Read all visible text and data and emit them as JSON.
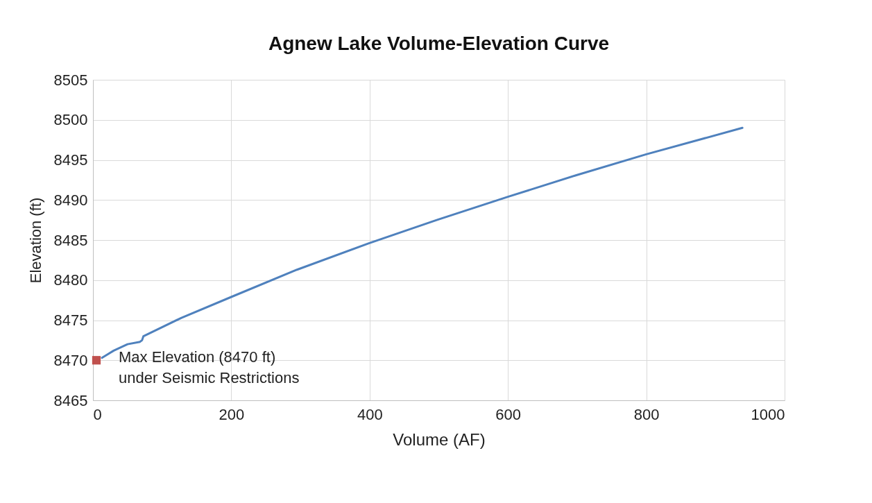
{
  "chart_data": {
    "type": "line",
    "title": "Agnew Lake Volume-Elevation Curve",
    "xlabel": "Volume (AF)",
    "ylabel": "Elevation (ft)",
    "xlim": [
      0,
      1000
    ],
    "xticks": [
      0,
      200,
      400,
      600,
      800,
      1000
    ],
    "ylim": [
      8465,
      8505
    ],
    "yticks": [
      8465,
      8470,
      8475,
      8480,
      8485,
      8490,
      8495,
      8500,
      8505
    ],
    "grid": true,
    "marker": "none",
    "series": [
      {
        "color": "#4f81bd",
        "x": [
          13,
          30,
          50,
          68,
          71,
          73,
          128,
          200,
          295,
          399,
          497,
          600,
          699,
          800,
          939
        ],
        "values": [
          8470.3,
          8471.2,
          8472.0,
          8472.3,
          8472.5,
          8473.0,
          8475.3,
          8477.9,
          8481.3,
          8484.6,
          8487.5,
          8490.4,
          8493.1,
          8495.7,
          8499.0
        ]
      },
      {
        "type": "scatter",
        "marker": "square",
        "color": "#c0504d",
        "x": [
          5
        ],
        "values": [
          8470
        ]
      }
    ],
    "annotations": [
      {
        "text": "Max Elevation (8470 ft)\nunder Seismic Restrictions",
        "x": 5,
        "y": 8470
      }
    ]
  }
}
